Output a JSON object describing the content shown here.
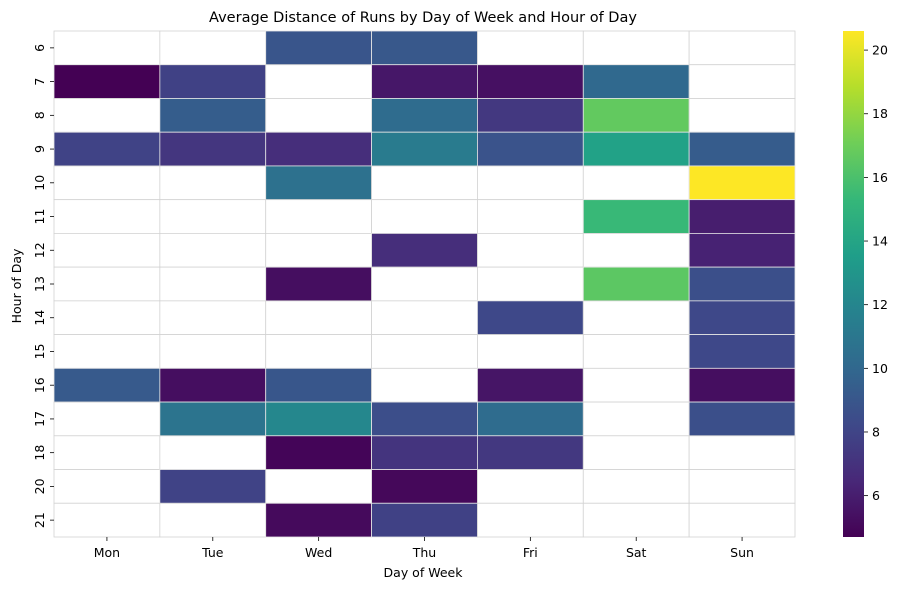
{
  "chart_data": {
    "type": "heatmap",
    "title": "Average Distance of Runs by Day of Week and Hour of Day",
    "xlabel": "Day of Week",
    "ylabel": "Hour of Day",
    "x_categories": [
      "Mon",
      "Tue",
      "Wed",
      "Thu",
      "Fri",
      "Sat",
      "Sun"
    ],
    "y_categories": [
      "6",
      "7",
      "8",
      "9",
      "10",
      "11",
      "12",
      "13",
      "14",
      "15",
      "16",
      "17",
      "18",
      "20",
      "21"
    ],
    "values": [
      [
        null,
        null,
        8.9,
        9.1,
        null,
        null,
        null
      ],
      [
        4.7,
        7.8,
        null,
        5.7,
        5.4,
        10.1,
        null
      ],
      [
        null,
        9.4,
        null,
        10.3,
        7.3,
        16.7,
        null
      ],
      [
        7.9,
        7.2,
        6.8,
        11.3,
        8.8,
        13.8,
        9.3
      ],
      [
        null,
        null,
        10.6,
        null,
        null,
        null,
        20.6
      ],
      [
        null,
        null,
        null,
        null,
        null,
        15.4,
        6.0
      ],
      [
        null,
        null,
        null,
        6.8,
        null,
        null,
        6.2
      ],
      [
        null,
        null,
        5.3,
        null,
        null,
        16.5,
        8.6
      ],
      [
        null,
        null,
        null,
        null,
        8.2,
        null,
        8.2
      ],
      [
        null,
        null,
        null,
        null,
        null,
        null,
        8.2
      ],
      [
        9.2,
        5.3,
        9.0,
        null,
        5.6,
        null,
        5.3
      ],
      [
        null,
        10.8,
        12.1,
        8.5,
        10.3,
        null,
        8.6
      ],
      [
        null,
        null,
        4.9,
        7.1,
        7.3,
        null,
        null
      ],
      [
        null,
        7.9,
        null,
        5.0,
        null,
        null,
        null
      ],
      [
        null,
        null,
        5.1,
        7.8,
        null,
        null,
        null
      ]
    ],
    "color_range": [
      4.7,
      20.6
    ],
    "colorbar_ticks": [
      6,
      8,
      10,
      12,
      14,
      16,
      18,
      20
    ],
    "colormap": "viridis",
    "colormap_stops": [
      "#440154",
      "#482878",
      "#3e4989",
      "#31688e",
      "#26828e",
      "#1f9e89",
      "#35b779",
      "#6ece58",
      "#b5de2b",
      "#fde725"
    ]
  }
}
